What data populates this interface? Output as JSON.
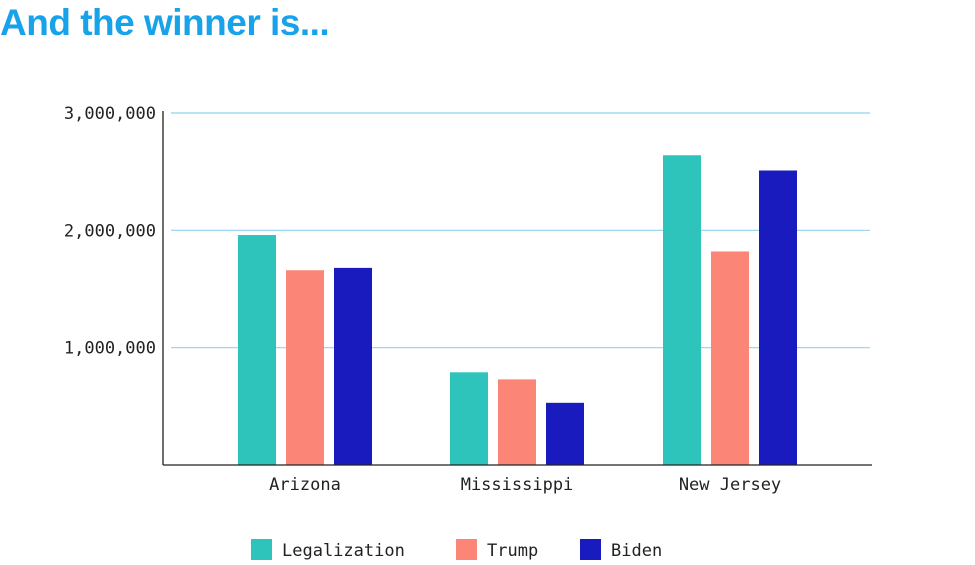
{
  "title": "And the winner is...",
  "chart_data": {
    "type": "bar",
    "categories": [
      "Arizona",
      "Mississippi",
      "New Jersey"
    ],
    "series": [
      {
        "name": "Legalization",
        "color": "#2ec4bb",
        "values": [
          1960000,
          790000,
          2640000
        ]
      },
      {
        "name": "Trump",
        "color": "#fb8678",
        "values": [
          1660000,
          730000,
          1820000
        ]
      },
      {
        "name": "Biden",
        "color": "#1a1bbf",
        "values": [
          1680000,
          530000,
          2510000
        ]
      }
    ],
    "yticks": [
      "1,000,000",
      "2,000,000",
      "3,000,000"
    ],
    "ytick_values": [
      1000000,
      2000000,
      3000000
    ],
    "ylim": [
      0,
      3000000
    ],
    "grid": true,
    "gridline_color": "#8fd3ea",
    "legend_position": "bottom-center",
    "xlabel": "",
    "ylabel": ""
  }
}
